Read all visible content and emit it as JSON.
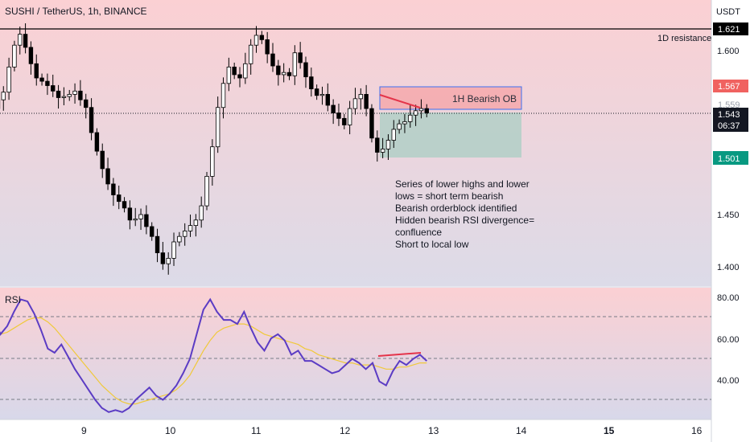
{
  "header": {
    "title": "SUSHI / TetherUS, 1h, BINANCE"
  },
  "price_axis": {
    "currency": "USDT"
  },
  "rsi_pane": {
    "label": "RSI"
  },
  "chart_data": [
    {
      "type": "candlestick",
      "title": "SUSHI / TetherUS, 1h, BINANCE",
      "ylabel": "USDT",
      "x_ticks": [
        "9",
        "10",
        "11",
        "12",
        "13",
        "14",
        "15",
        "16"
      ],
      "y_ticks": [
        "1.600",
        "1.450",
        "1.400"
      ],
      "ylim": [
        1.375,
        1.625
      ],
      "grid": false,
      "price_badges": [
        {
          "value": "1.621",
          "color": "#000000"
        },
        {
          "value": "1.567",
          "color": "#f06260"
        },
        {
          "value": "1.559",
          "color": "#9aa0ac"
        },
        {
          "value": "1.543",
          "color": "#131722"
        },
        {
          "value": "06:37",
          "color": "#131722"
        },
        {
          "value": "1.501",
          "color": "#089981"
        }
      ],
      "levels": [
        {
          "label": "1D resistance",
          "value": 1.621
        }
      ],
      "zones": [
        {
          "label": "1H Bearish OB",
          "from_x": 12.45,
          "to_x": 13.95,
          "from_y": 1.559,
          "to_y": 1.567,
          "color": "#f5a3a6"
        },
        {
          "label": "",
          "from_x": 12.45,
          "to_x": 13.95,
          "from_y": 1.501,
          "to_y": 1.543,
          "color": "#b5cfc8"
        }
      ],
      "annotation_lines": [
        "Series of lower highs and lower",
        "lows = short term bearish",
        "Bearish orderblock identified",
        "Hidden bearish RSI divergence=",
        "confluence",
        "Short to local low"
      ],
      "trendline": {
        "x": [
          12.45,
          12.9
        ],
        "y": [
          1.563,
          1.551
        ],
        "color": "#e4344a"
      },
      "price_close": [
        1.548,
        1.547,
        1.555,
        1.562,
        1.585,
        1.605,
        1.615,
        1.603,
        1.588,
        1.575,
        1.572,
        1.568,
        1.563,
        1.557,
        1.558,
        1.56,
        1.563,
        1.555,
        1.548,
        1.525,
        1.508,
        1.492,
        1.478,
        1.468,
        1.462,
        1.456,
        1.445,
        1.446,
        1.45,
        1.439,
        1.43,
        1.415,
        1.405,
        1.41,
        1.425,
        1.43,
        1.435,
        1.44,
        1.445,
        1.458,
        1.485,
        1.512,
        1.548,
        1.57,
        1.585,
        1.578,
        1.575,
        1.588,
        1.605,
        1.614,
        1.61,
        1.597,
        1.586,
        1.578,
        1.58,
        1.577,
        1.598,
        1.589,
        1.576,
        1.565,
        1.559,
        1.56,
        1.55,
        1.543,
        1.538,
        1.532,
        1.547,
        1.556,
        1.56,
        1.547,
        1.52,
        1.507,
        1.51,
        1.518,
        1.528,
        1.533,
        1.535,
        1.541,
        1.545,
        1.547,
        1.543
      ],
      "price_x_range": [
        7.9,
        12.9
      ]
    },
    {
      "type": "line",
      "title": "RSI",
      "x_ticks": [
        "9",
        "10",
        "11",
        "12",
        "13",
        "14",
        "15",
        "16"
      ],
      "y_ticks": [
        "80.00",
        "60.00",
        "40.00"
      ],
      "ylim": [
        25,
        83
      ],
      "reference_levels": [
        70,
        50,
        30
      ],
      "series": [
        {
          "color": "#5b3cc4",
          "values": [
            65,
            70,
            62,
            66,
            73,
            79,
            78,
            72,
            64,
            55,
            53,
            57,
            51,
            45,
            40,
            35,
            30,
            26,
            24,
            25,
            24,
            26,
            30,
            33,
            36,
            32,
            30,
            33,
            37,
            43,
            50,
            62,
            74,
            79,
            73,
            69,
            69,
            67,
            73,
            65,
            58,
            54,
            60,
            62,
            59,
            52,
            54,
            49,
            49,
            47,
            45,
            43,
            44,
            47,
            50,
            48,
            45,
            48,
            39,
            37,
            44,
            49,
            47,
            50,
            52,
            49
          ]
        },
        {
          "color": "#f0c93a",
          "values": [
            60,
            61,
            62,
            63,
            65,
            67,
            69,
            70,
            70,
            68,
            65,
            61,
            57,
            53,
            49,
            45,
            41,
            37,
            34,
            31,
            29,
            28,
            28,
            29,
            30,
            31,
            32,
            33,
            35,
            38,
            42,
            48,
            54,
            59,
            63,
            65,
            66,
            67,
            67,
            66,
            64,
            62,
            61,
            60,
            59,
            58,
            57,
            55,
            54,
            52,
            51,
            50,
            49,
            48,
            48,
            47,
            47,
            47,
            46,
            45,
            45,
            46,
            46,
            47,
            48,
            48
          ]
        }
      ],
      "divergence_line": {
        "x": [
          12.2,
          12.95
        ],
        "y": [
          51,
          53
        ],
        "color": "#e4344a"
      },
      "x_range": [
        7.9,
        12.9
      ]
    }
  ]
}
